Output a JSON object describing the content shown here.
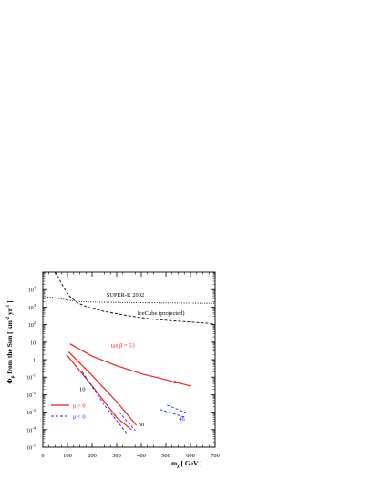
{
  "chart_data": {
    "type": "line",
    "xlabel": "m",
    "xlabel_sub": "χ̃",
    "xlabel_unit": "[ GeV ]",
    "ylabel": "Φ",
    "ylabel_sub": "μ",
    "ylabel_rest": "from the Sun [ km",
    "ylabel_exp1": "-2",
    "ylabel_mid": "yr",
    "ylabel_exp2": "-1",
    "ylabel_end": "]",
    "xlim": [
      0,
      700
    ],
    "ylim_log10": [
      -5,
      5
    ],
    "y_scale": "log",
    "x_ticks": [
      "0",
      "100",
      "200",
      "300",
      "400",
      "500",
      "600",
      "700"
    ],
    "y_ticks": [
      {
        "exp": 4,
        "base": "10",
        "sup": "4"
      },
      {
        "exp": 3,
        "base": "10",
        "sup": "3"
      },
      {
        "exp": 2,
        "base": "10",
        "sup": "2"
      },
      {
        "exp": 1,
        "base": "10",
        "sup": ""
      },
      {
        "exp": 0,
        "base": "1",
        "sup": ""
      },
      {
        "exp": -1,
        "base": "10",
        "sup": "-1"
      },
      {
        "exp": -2,
        "base": "10",
        "sup": "-2"
      },
      {
        "exp": -3,
        "base": "10",
        "sup": "-3"
      },
      {
        "exp": -4,
        "base": "10",
        "sup": "-4"
      },
      {
        "exp": -5,
        "base": "10",
        "sup": "-5"
      }
    ],
    "series": [
      {
        "name": "SUPER-K 2002",
        "style": "dotted",
        "color": "#000000",
        "points": [
          [
            0,
            3.6
          ],
          [
            40,
            3.55
          ],
          [
            100,
            3.4
          ],
          [
            150,
            3.32
          ],
          [
            200,
            3.29
          ],
          [
            300,
            3.27
          ],
          [
            400,
            3.25
          ],
          [
            500,
            3.24
          ],
          [
            600,
            3.23
          ],
          [
            700,
            3.22
          ]
        ]
      },
      {
        "name": "IceCube (projected)",
        "style": "dashed",
        "color": "#000000",
        "points": [
          [
            50,
            5.0
          ],
          [
            70,
            4.5
          ],
          [
            90,
            4.0
          ],
          [
            110,
            3.6
          ],
          [
            140,
            3.25
          ],
          [
            180,
            3.0
          ],
          [
            250,
            2.75
          ],
          [
            350,
            2.5
          ],
          [
            450,
            2.3
          ],
          [
            550,
            2.2
          ],
          [
            650,
            2.1
          ],
          [
            700,
            2.05
          ]
        ]
      },
      {
        "style": "solid",
        "color": "#e8221b",
        "points": [
          [
            110,
            0.9
          ],
          [
            200,
            0.2
          ],
          [
            300,
            -0.35
          ],
          [
            400,
            -0.8
          ],
          [
            500,
            -1.15
          ],
          [
            600,
            -1.5
          ]
        ]
      },
      {
        "style": "solid",
        "color": "#e8221b",
        "points": [
          [
            105,
            0.45
          ],
          [
            200,
            -0.9
          ],
          [
            300,
            -2.4
          ],
          [
            380,
            -3.75
          ]
        ]
      },
      {
        "style": "solid",
        "color": "#e8221b",
        "points": [
          [
            95,
            0.3
          ],
          [
            200,
            -1.5
          ],
          [
            300,
            -3.3
          ],
          [
            360,
            -4.0
          ]
        ]
      },
      {
        "style": "dashed",
        "color": "#1a1aff",
        "points": [
          [
            160,
            -0.7
          ],
          [
            250,
            -2.6
          ],
          [
            340,
            -4.2
          ]
        ]
      },
      {
        "style": "dashed",
        "color": "#1a1aff",
        "points": [
          [
            310,
            -3.0
          ],
          [
            375,
            -4.05
          ]
        ]
      },
      {
        "style": "dashed",
        "color": "#1a1aff",
        "points": [
          [
            475,
            -2.85
          ],
          [
            580,
            -3.3
          ]
        ]
      },
      {
        "style": "dashed",
        "color": "#1a1aff",
        "points": [
          [
            505,
            -2.6
          ],
          [
            585,
            -3.05
          ]
        ]
      }
    ],
    "annotations": [
      {
        "text": "SUPER-K 2002",
        "x": 335,
        "y": 3.6,
        "color": "#000000"
      },
      {
        "text": "IceCube (projected)",
        "x": 480,
        "y": 2.55,
        "color": "#000000"
      },
      {
        "text": "tan β = 53",
        "x": 325,
        "y": 0.7,
        "color": "#e8221b"
      },
      {
        "text": "10",
        "x": 160,
        "y": -1.8,
        "color": "#000000"
      },
      {
        "text": "30",
        "x": 400,
        "y": -3.8,
        "color": "#000000"
      },
      {
        "text": "46",
        "x": 565,
        "y": -3.5,
        "color": "#1a1aff"
      }
    ],
    "legend": {
      "placement": "bottom-left",
      "entries": [
        {
          "label": "μ > 0",
          "color": "#e8221b",
          "style": "solid"
        },
        {
          "label": "μ < 0",
          "color": "#1a1aff",
          "style": "dashed"
        }
      ]
    },
    "grid": false,
    "colors": {
      "positive_mu": "#e8221b",
      "negative_mu": "#1a1aff",
      "axes": "#000000"
    }
  }
}
